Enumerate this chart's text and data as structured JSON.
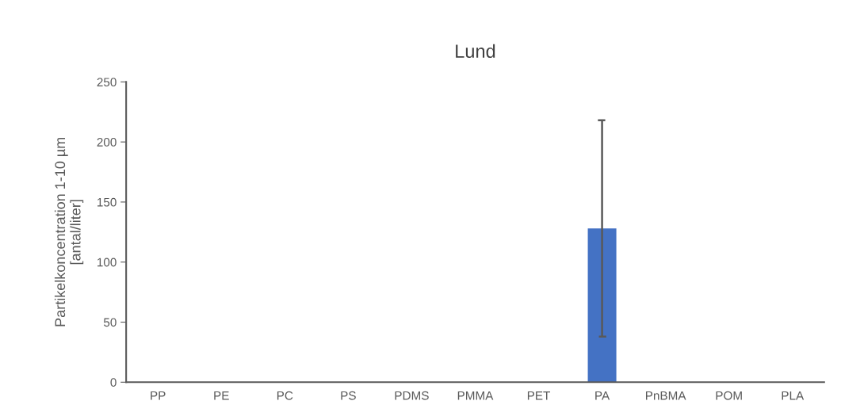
{
  "chart_data": {
    "type": "bar",
    "title": "Lund",
    "ylabel": "Partikelkoncentration 1-10 µm\n[antal/liter]",
    "categories": [
      "PP",
      "PE",
      "PC",
      "PS",
      "PDMS",
      "PMMA",
      "PET",
      "PA",
      "PnBMA",
      "POM",
      "PLA"
    ],
    "values": [
      0,
      0,
      0,
      0,
      0,
      0,
      0,
      128,
      0,
      0,
      0
    ],
    "errors": [
      null,
      null,
      null,
      null,
      null,
      null,
      null,
      90,
      null,
      null,
      null
    ],
    "color": "#4472c4",
    "ylim": [
      0,
      250
    ],
    "yticks": [
      0,
      50,
      100,
      150,
      200,
      250
    ],
    "grid": false
  }
}
